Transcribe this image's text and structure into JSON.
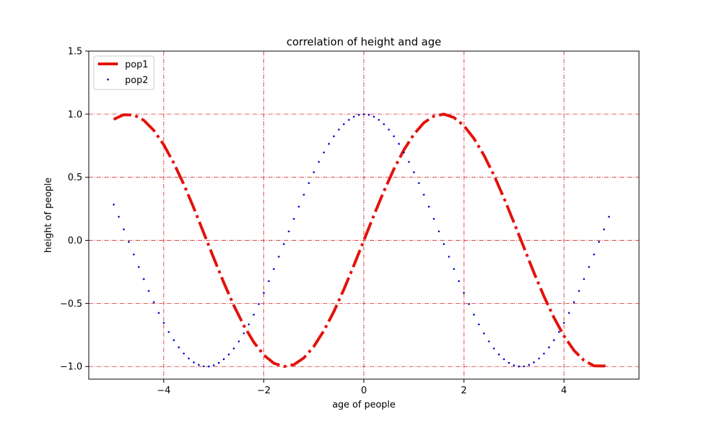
{
  "chart_data": {
    "type": "line",
    "title": "correlation of height and age",
    "xlabel": "age of people",
    "ylabel": "height of people",
    "xlim": [
      -5.5,
      5.5
    ],
    "ylim": [
      -1.1,
      1.5
    ],
    "x_ticks": [
      -4,
      -2,
      0,
      2,
      4
    ],
    "x_tick_labels": [
      "−4",
      "−2",
      "0",
      "2",
      "4"
    ],
    "y_ticks": [
      -1.0,
      -0.5,
      0.0,
      0.5,
      1.0,
      1.5
    ],
    "y_tick_labels": [
      "−1.0",
      "−0.5",
      "0.0",
      "0.5",
      "1.0",
      "1.5"
    ],
    "grid": true,
    "grid_color": "#d62728",
    "legend_position": "upper-left",
    "series": [
      {
        "name": "pop1",
        "style": "dash-dot line",
        "color": "#e3120b",
        "x": [
          -5.0,
          -4.8,
          -4.6,
          -4.4,
          -4.2,
          -4.0,
          -3.8,
          -3.6,
          -3.4,
          -3.2,
          -3.0,
          -2.8,
          -2.6,
          -2.4,
          -2.2,
          -2.0,
          -1.8,
          -1.6,
          -1.4,
          -1.2,
          -1.0,
          -0.8,
          -0.6,
          -0.4,
          -0.2,
          0.0,
          0.2,
          0.4,
          0.6,
          0.8,
          1.0,
          1.2,
          1.4,
          1.6,
          1.8,
          2.0,
          2.2,
          2.4,
          2.6,
          2.8,
          3.0,
          3.2,
          3.4,
          3.6,
          3.8,
          4.0,
          4.2,
          4.4,
          4.6,
          4.8,
          4.9
        ],
        "y": [
          0.959,
          0.996,
          0.994,
          0.952,
          0.872,
          0.757,
          0.612,
          0.443,
          0.256,
          0.058,
          -0.141,
          -0.335,
          -0.516,
          -0.675,
          -0.808,
          -0.909,
          -0.974,
          -1.0,
          -0.985,
          -0.932,
          -0.841,
          -0.717,
          -0.565,
          -0.389,
          -0.199,
          0.0,
          0.199,
          0.389,
          0.565,
          0.717,
          0.841,
          0.932,
          0.985,
          1.0,
          0.974,
          0.909,
          0.808,
          0.675,
          0.516,
          0.335,
          0.141,
          -0.058,
          -0.256,
          -0.443,
          -0.612,
          -0.757,
          -0.872,
          -0.952,
          -0.994,
          -0.996,
          -0.982
        ]
      },
      {
        "name": "pop2",
        "style": "dotted markers",
        "color": "#0000cc",
        "x": [
          -5.0,
          -4.9,
          -4.8,
          -4.7,
          -4.6,
          -4.5,
          -4.4,
          -4.3,
          -4.2,
          -4.1,
          -4.0,
          -3.9,
          -3.8,
          -3.7,
          -3.6,
          -3.5,
          -3.4,
          -3.3,
          -3.2,
          -3.1,
          -3.0,
          -2.9,
          -2.8,
          -2.7,
          -2.6,
          -2.5,
          -2.4,
          -2.3,
          -2.2,
          -2.1,
          -2.0,
          -1.9,
          -1.8,
          -1.7,
          -1.6,
          -1.5,
          -1.4,
          -1.3,
          -1.2,
          -1.1,
          -1.0,
          -0.9,
          -0.8,
          -0.7,
          -0.6,
          -0.5,
          -0.4,
          -0.3,
          -0.2,
          -0.1,
          0.0,
          0.1,
          0.2,
          0.3,
          0.4,
          0.5,
          0.6,
          0.7,
          0.8,
          0.9,
          1.0,
          1.1,
          1.2,
          1.3,
          1.4,
          1.5,
          1.6,
          1.7,
          1.8,
          1.9,
          2.0,
          2.1,
          2.2,
          2.3,
          2.4,
          2.5,
          2.6,
          2.7,
          2.8,
          2.9,
          3.0,
          3.1,
          3.2,
          3.3,
          3.4,
          3.5,
          3.6,
          3.7,
          3.8,
          3.9,
          4.0,
          4.1,
          4.2,
          4.3,
          4.4,
          4.5,
          4.6,
          4.7,
          4.8,
          4.9
        ],
        "y": [
          0.284,
          0.187,
          0.087,
          -0.012,
          -0.112,
          -0.211,
          -0.307,
          -0.401,
          -0.49,
          -0.575,
          -0.654,
          -0.726,
          -0.791,
          -0.848,
          -0.897,
          -0.936,
          -0.967,
          -0.987,
          -0.998,
          -0.999,
          -0.99,
          -0.971,
          -0.942,
          -0.904,
          -0.857,
          -0.801,
          -0.737,
          -0.666,
          -0.589,
          -0.505,
          -0.416,
          -0.323,
          -0.227,
          -0.129,
          -0.029,
          0.071,
          0.17,
          0.267,
          0.362,
          0.454,
          0.54,
          0.622,
          0.697,
          0.765,
          0.825,
          0.878,
          0.921,
          0.955,
          0.98,
          0.995,
          1.0,
          0.995,
          0.98,
          0.955,
          0.921,
          0.878,
          0.825,
          0.765,
          0.697,
          0.622,
          0.54,
          0.454,
          0.362,
          0.267,
          0.17,
          0.071,
          -0.029,
          -0.129,
          -0.227,
          -0.323,
          -0.416,
          -0.505,
          -0.589,
          -0.666,
          -0.737,
          -0.801,
          -0.857,
          -0.904,
          -0.942,
          -0.971,
          -0.99,
          -0.999,
          -0.998,
          -0.987,
          -0.967,
          -0.936,
          -0.897,
          -0.848,
          -0.791,
          -0.726,
          -0.654,
          -0.575,
          -0.49,
          -0.401,
          -0.307,
          -0.211,
          -0.112,
          -0.012,
          0.087,
          0.187
        ]
      }
    ]
  }
}
